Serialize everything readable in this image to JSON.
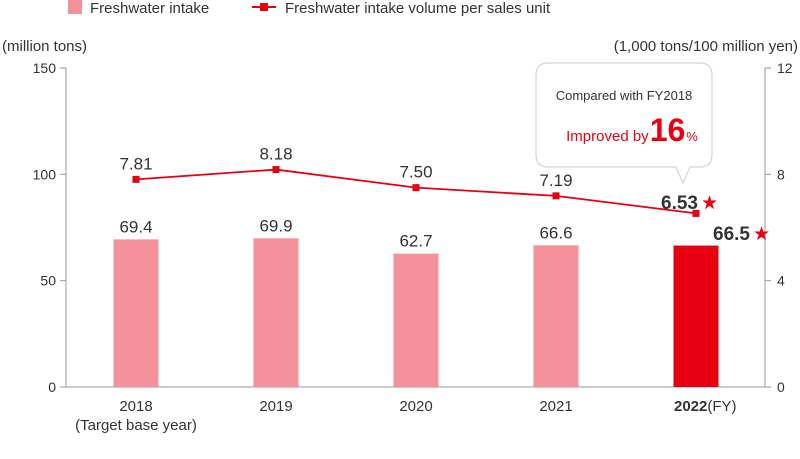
{
  "chart_data": {
    "type": "bar+line",
    "categories": [
      "2018",
      "2019",
      "2020",
      "2021",
      "2022"
    ],
    "category_notes": [
      "(Target base year)",
      "",
      "",
      "",
      ""
    ],
    "x_unit": "(FY)",
    "series": [
      {
        "name": "Freshwater intake",
        "type": "bar",
        "axis": "left",
        "values": [
          69.4,
          69.9,
          62.7,
          66.6,
          66.5
        ],
        "labels": [
          "69.4",
          "69.9",
          "62.7",
          "66.6",
          "66.5"
        ],
        "color": "#f4929c",
        "highlight_color": "#e60012"
      },
      {
        "name": "Freshwater intake volume per sales unit",
        "type": "line",
        "axis": "right",
        "values": [
          7.81,
          8.18,
          7.5,
          7.19,
          6.53
        ],
        "labels": [
          "7.81",
          "8.18",
          "7.50",
          "7.19",
          "6.53"
        ],
        "color": "#e60012"
      }
    ],
    "left_axis": {
      "label": "(million tons)",
      "ylim": [
        0,
        150
      ],
      "ticks": [
        "0",
        "50",
        "100",
        "150"
      ]
    },
    "right_axis": {
      "label": "(1,000 tons/100 million yen)",
      "ylim": [
        0,
        12
      ],
      "ticks": [
        "0",
        "4",
        "8",
        "12"
      ]
    },
    "highlight_index": 4,
    "highlight_marker": "★",
    "callout": {
      "line1": "Compared with FY2018",
      "prefix": "Improved by",
      "value": "16",
      "unit": "%"
    },
    "grid": false,
    "legend_position": "top-left"
  },
  "colors": {
    "axis": "#999999",
    "text": "#333333",
    "accent": "#e60012",
    "bar": "#f4929c"
  }
}
